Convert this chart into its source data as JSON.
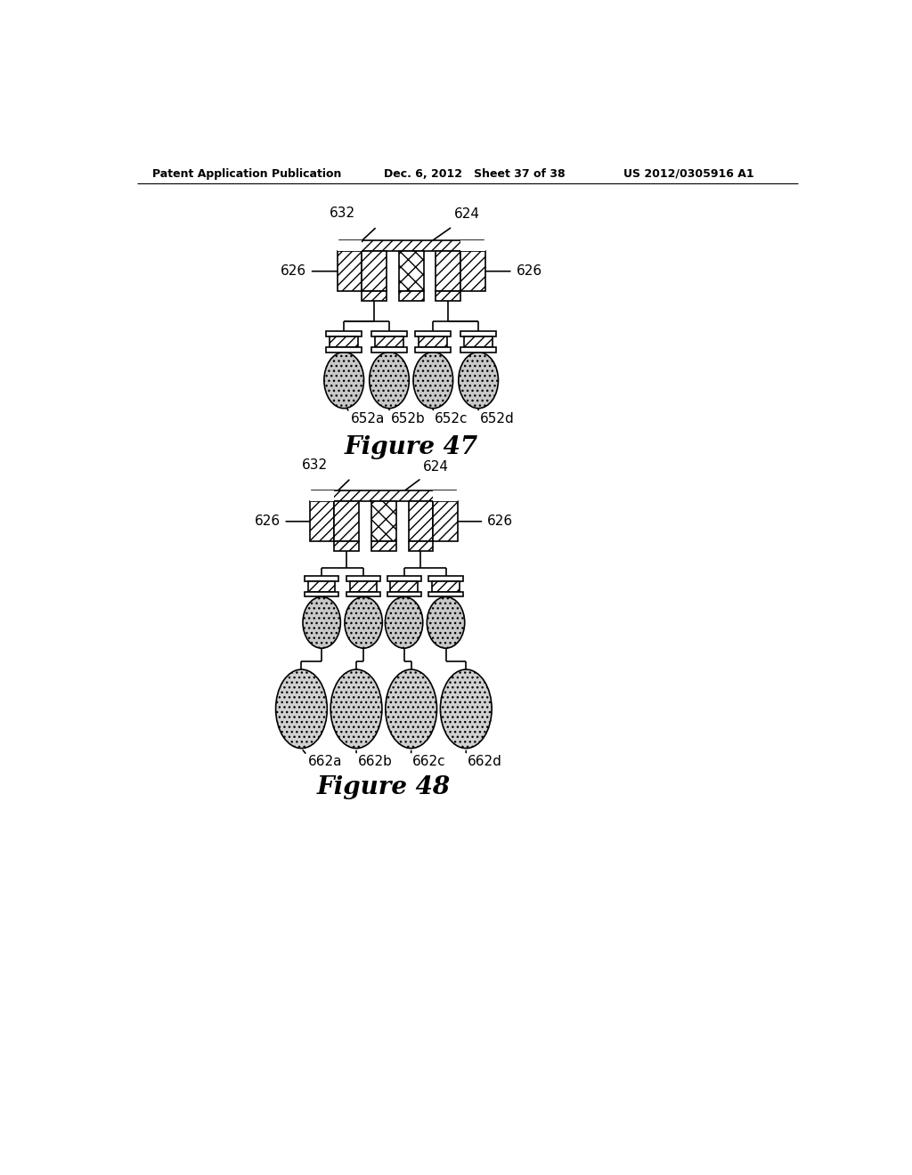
{
  "header_left": "Patent Application Publication",
  "header_mid": "Dec. 6, 2012   Sheet 37 of 38",
  "header_right": "US 2012/0305916 A1",
  "fig47_title": "Figure 47",
  "fig48_title": "Figure 48",
  "bg_color": "#ffffff"
}
